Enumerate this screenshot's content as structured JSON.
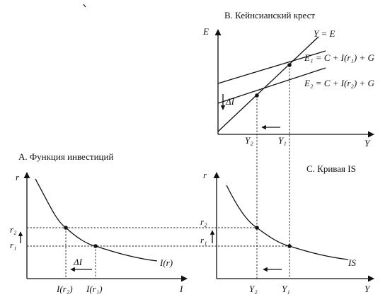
{
  "panels": {
    "keynesian": {
      "title": "B. Кейнсианский крест",
      "axis_y": "E",
      "axis_x": "Y",
      "line_ye": "Y = E",
      "line_e1": "E₁ = C + I(r₁) + G",
      "line_e2": "E₂ = C + I(r₂) + G",
      "delta": "ΔI",
      "y2": "Y₂",
      "y1": "Y₁"
    },
    "investment": {
      "title": "A. Функция инвестиций",
      "axis_y": "r",
      "axis_x": "I",
      "r2": "r₂",
      "r1": "r₁",
      "curve": "I(r)",
      "delta": "ΔI",
      "i_r2": "I(r₂)",
      "i_r1": "I(r₁)"
    },
    "is_curve": {
      "title": "C. Кривая IS",
      "axis_y": "r",
      "axis_x": "Y",
      "r2": "r₂",
      "r1": "r₁",
      "curve": "IS",
      "y2": "Y₂",
      "y1": "Y₁"
    }
  },
  "colors": {
    "ink": "#111111",
    "background": "#ffffff"
  }
}
